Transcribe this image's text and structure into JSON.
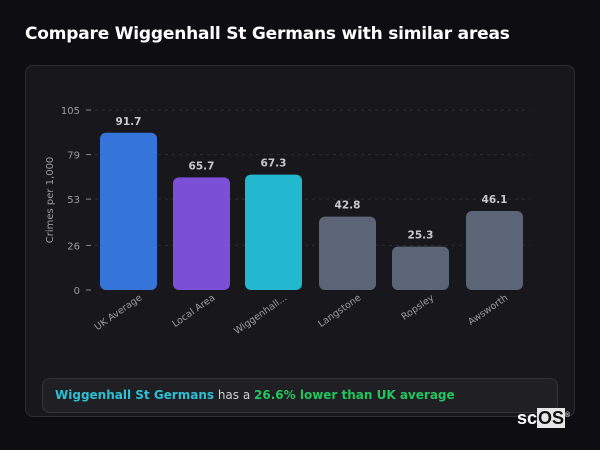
{
  "header": {
    "title": "Compare Wiggenhall St Germans with similar areas"
  },
  "chart_data": {
    "type": "bar",
    "ylabel": "Crimes per 1,000",
    "xlabel": "",
    "ylim": [
      0,
      105
    ],
    "yticks": [
      0,
      26,
      53,
      79,
      105
    ],
    "grid": true,
    "categories": [
      "UK Average",
      "Local Area",
      "Wiggenhall...",
      "Langstone",
      "Ropsley",
      "Awsworth"
    ],
    "values": [
      91.7,
      65.7,
      67.3,
      42.8,
      25.3,
      46.1
    ],
    "value_labels": [
      "91.7",
      "65.7",
      "67.3",
      "42.8",
      "25.3",
      "46.1"
    ],
    "colors": [
      "#3574d8",
      "#7b4fd6",
      "#22b8cf",
      "#5b6577",
      "#5b6577",
      "#5b6577"
    ]
  },
  "footer": {
    "place": "Wiggenhall St Germans",
    "middle": " has a ",
    "highlight": "26.6% lower than UK average"
  },
  "logo": {
    "text_a": "sc",
    "text_b": "OS",
    "mark": "®"
  }
}
